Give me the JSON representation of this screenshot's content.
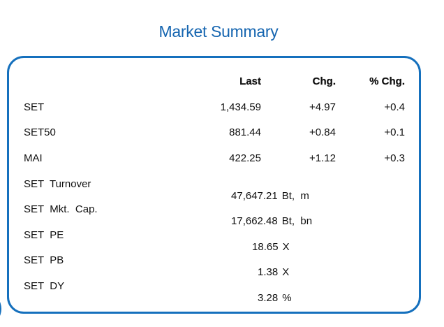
{
  "title": "Market Summary",
  "headers": {
    "last": "Last",
    "chg": "Chg.",
    "pct_chg": "% Chg."
  },
  "index_rows": [
    {
      "name": "SET",
      "last": "1,434.59",
      "chg": "+4.97",
      "pct_chg": "+0.4"
    },
    {
      "name": "SET50",
      "last": "881.44",
      "chg": "+0.84",
      "pct_chg": "+0.1"
    },
    {
      "name": "MAI",
      "last": "422.25",
      "chg": "+1.12",
      "pct_chg": "+0.3"
    }
  ],
  "stat_rows": [
    {
      "name": "SET  Turnover",
      "value": "47,647.21",
      "unit": "Bt,  m"
    },
    {
      "name": "SET  Mkt.  Cap.",
      "value": "17,662.48",
      "unit": "Bt,  bn"
    },
    {
      "name": "SET  PE",
      "value": "18.65",
      "unit": "X"
    },
    {
      "name": "SET  PB",
      "value": "1.38",
      "unit": "X"
    },
    {
      "name": "SET  DY",
      "value": "3.28",
      "unit": "%"
    }
  ],
  "colors": {
    "accent": "#1565b0",
    "border": "#1570bd",
    "text": "#111111"
  }
}
